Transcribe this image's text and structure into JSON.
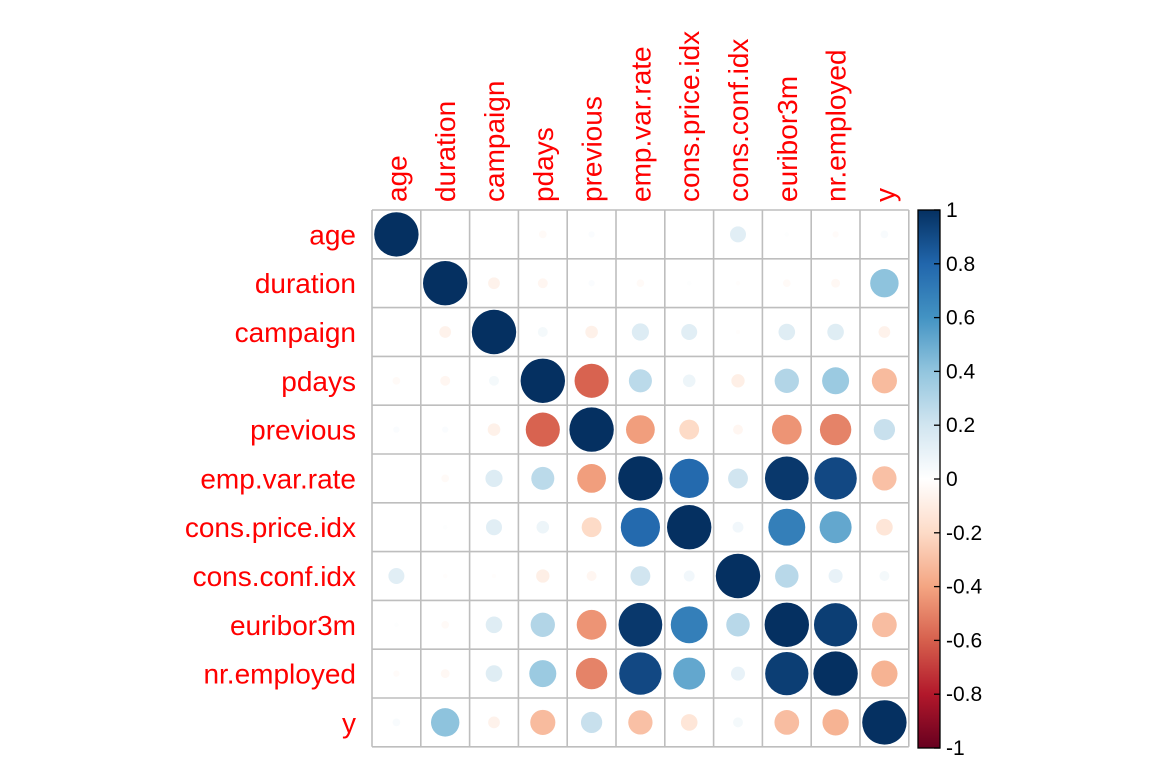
{
  "chart_data": {
    "type": "heatmap",
    "style": "correlation-circles",
    "variables": [
      "age",
      "duration",
      "campaign",
      "pdays",
      "previous",
      "emp.var.rate",
      "cons.price.idx",
      "cons.conf.idx",
      "euribor3m",
      "nr.employed",
      "y"
    ],
    "matrix": [
      [
        1.0,
        0.0,
        0.0,
        -0.03,
        0.02,
        0.0,
        0.0,
        0.13,
        0.01,
        -0.02,
        0.03
      ],
      [
        0.0,
        1.0,
        -0.07,
        -0.05,
        0.02,
        -0.03,
        0.01,
        -0.01,
        -0.03,
        -0.04,
        0.41
      ],
      [
        0.0,
        -0.07,
        1.0,
        0.05,
        -0.08,
        0.15,
        0.13,
        -0.01,
        0.14,
        0.14,
        -0.07
      ],
      [
        -0.03,
        -0.05,
        0.05,
        1.0,
        -0.59,
        0.27,
        0.08,
        -0.09,
        0.3,
        0.37,
        -0.32
      ],
      [
        0.02,
        0.02,
        -0.08,
        -0.59,
        1.0,
        -0.42,
        -0.2,
        -0.05,
        -0.45,
        -0.5,
        0.23
      ],
      [
        0.0,
        -0.03,
        0.15,
        0.27,
        -0.42,
        1.0,
        0.78,
        0.2,
        0.97,
        0.91,
        -0.3
      ],
      [
        0.0,
        0.01,
        0.13,
        0.08,
        -0.2,
        0.78,
        1.0,
        0.06,
        0.69,
        0.52,
        -0.14
      ],
      [
        0.13,
        -0.01,
        -0.01,
        -0.09,
        -0.05,
        0.2,
        0.06,
        1.0,
        0.28,
        0.1,
        0.05
      ],
      [
        0.01,
        -0.03,
        0.14,
        0.3,
        -0.45,
        0.97,
        0.69,
        0.28,
        1.0,
        0.95,
        -0.31
      ],
      [
        -0.02,
        -0.04,
        0.14,
        0.37,
        -0.5,
        0.91,
        0.52,
        0.1,
        0.95,
        1.0,
        -0.35
      ],
      [
        0.03,
        0.41,
        -0.07,
        -0.32,
        0.23,
        -0.3,
        -0.14,
        0.05,
        -0.31,
        -0.35,
        1.0
      ]
    ],
    "colorbar": {
      "ticks": [
        "1",
        "0.8",
        "0.6",
        "0.4",
        "0.2",
        "0",
        "-0.2",
        "-0.4",
        "-0.6",
        "-0.8",
        "-1"
      ],
      "range": [
        -1,
        1
      ]
    },
    "label_color": "#ff0000",
    "palette": [
      "#67001f",
      "#b2182b",
      "#d6604d",
      "#f4a582",
      "#fddbc7",
      "#ffffff",
      "#d1e5f0",
      "#92c5de",
      "#4393c3",
      "#2166ac",
      "#053061"
    ],
    "grid": true
  }
}
